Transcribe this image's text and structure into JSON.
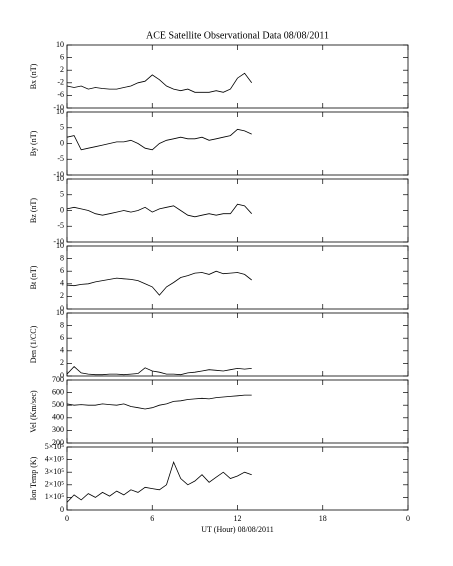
{
  "chart_data": [
    {
      "type": "line",
      "title": "ACE Satellite Observational Data   08/08/2011",
      "ylabel": "Bx (nT)",
      "xlim": [
        0,
        24
      ],
      "xticks": [
        0,
        6,
        12,
        18,
        {
          "value": 24,
          "label": "0"
        }
      ],
      "ylim": [
        -10,
        10
      ],
      "yticks": [
        -10,
        -6,
        -2,
        2,
        6,
        10
      ],
      "x": [
        0,
        0.5,
        1,
        1.5,
        2,
        2.5,
        3,
        3.5,
        4,
        4.5,
        5,
        5.5,
        6,
        6.5,
        7,
        7.5,
        8,
        8.5,
        9,
        9.5,
        10,
        10.5,
        11,
        11.5,
        12,
        12.5,
        13
      ],
      "series": [
        {
          "color": "#000000",
          "values": [
            -3,
            -3.5,
            -3,
            -4,
            -3.5,
            -3.8,
            -4,
            -4,
            -3.5,
            -3,
            -2,
            -1.5,
            0.5,
            -1,
            -3,
            -4,
            -4.5,
            -4,
            -5,
            -5,
            -5,
            -4.5,
            -5,
            -4,
            -0.5,
            1,
            -2
          ]
        }
      ]
    },
    {
      "type": "line",
      "ylabel": "By (nT)",
      "xlim": [
        0,
        24
      ],
      "xticks": [
        0,
        6,
        12,
        18,
        {
          "value": 24,
          "label": "0"
        }
      ],
      "ylim": [
        -10,
        10
      ],
      "yticks": [
        -10,
        -5,
        0,
        5,
        10
      ],
      "x": [
        0,
        0.5,
        1,
        1.5,
        2,
        2.5,
        3,
        3.5,
        4,
        4.5,
        5,
        5.5,
        6,
        6.5,
        7,
        7.5,
        8,
        8.5,
        9,
        9.5,
        10,
        10.5,
        11,
        11.5,
        12,
        12.5,
        13
      ],
      "series": [
        {
          "color": "#000000",
          "values": [
            2,
            2.5,
            -2,
            -1.5,
            -1,
            -0.5,
            0,
            0.5,
            0.5,
            1,
            0,
            -1.5,
            -2,
            0,
            1,
            1.5,
            2,
            1.5,
            1.5,
            2,
            1,
            1.5,
            2,
            2.5,
            4.5,
            4,
            3
          ]
        }
      ]
    },
    {
      "type": "line",
      "ylabel": "Bz (nT)",
      "xlim": [
        0,
        24
      ],
      "xticks": [
        0,
        6,
        12,
        18,
        {
          "value": 24,
          "label": "0"
        }
      ],
      "ylim": [
        -10,
        10
      ],
      "yticks": [
        -10,
        -5,
        0,
        5,
        10
      ],
      "x": [
        0,
        0.5,
        1,
        1.5,
        2,
        2.5,
        3,
        3.5,
        4,
        4.5,
        5,
        5.5,
        6,
        6.5,
        7,
        7.5,
        8,
        8.5,
        9,
        9.5,
        10,
        10.5,
        11,
        11.5,
        12,
        12.5,
        13
      ],
      "series": [
        {
          "color": "#000000",
          "values": [
            0.5,
            1,
            0.5,
            0,
            -1,
            -1.5,
            -1,
            -0.5,
            0,
            -0.5,
            0,
            1,
            -0.5,
            0.5,
            1,
            1.5,
            0,
            -1.5,
            -2,
            -1.5,
            -1,
            -1.5,
            -1,
            -1,
            2,
            1.5,
            -1
          ]
        }
      ]
    },
    {
      "type": "line",
      "ylabel": "Bt (nT)",
      "xlim": [
        0,
        24
      ],
      "xticks": [
        0,
        6,
        12,
        18,
        {
          "value": 24,
          "label": "0"
        }
      ],
      "ylim": [
        0,
        10
      ],
      "yticks": [
        0,
        2,
        4,
        6,
        8,
        10
      ],
      "x": [
        0,
        0.5,
        1,
        1.5,
        2,
        2.5,
        3,
        3.5,
        4,
        4.5,
        5,
        5.5,
        6,
        6.5,
        7,
        7.5,
        8,
        8.5,
        9,
        9.5,
        10,
        10.5,
        11,
        11.5,
        12,
        12.5,
        13
      ],
      "series": [
        {
          "color": "#000000",
          "values": [
            3.8,
            3.7,
            3.9,
            4,
            4.3,
            4.5,
            4.7,
            4.9,
            4.8,
            4.7,
            4.5,
            4,
            3.5,
            2.2,
            3.5,
            4.2,
            5,
            5.3,
            5.7,
            5.8,
            5.5,
            6,
            5.6,
            5.7,
            5.8,
            5.5,
            4.6
          ]
        }
      ]
    },
    {
      "type": "line",
      "ylabel": "Den (1/CC)",
      "xlim": [
        0,
        24
      ],
      "xticks": [
        0,
        6,
        12,
        18,
        {
          "value": 24,
          "label": "0"
        }
      ],
      "ylim": [
        0,
        10
      ],
      "yticks": [
        0,
        2,
        4,
        6,
        8,
        10
      ],
      "x": [
        0,
        0.5,
        1,
        1.5,
        2,
        2.5,
        3,
        3.5,
        4,
        4.5,
        5,
        5.5,
        6,
        6.5,
        7,
        7.5,
        8,
        8.5,
        9,
        9.5,
        10,
        10.5,
        11,
        11.5,
        12,
        12.5,
        13
      ],
      "series": [
        {
          "color": "#000000",
          "values": [
            0.3,
            1.5,
            0.5,
            0.3,
            0.2,
            0.2,
            0.3,
            0.3,
            0.2,
            0.3,
            0.4,
            1.3,
            0.8,
            0.6,
            0.3,
            0.3,
            0.2,
            0.5,
            0.6,
            0.8,
            1,
            0.9,
            0.8,
            1,
            1.2,
            1.1,
            1.2
          ]
        }
      ]
    },
    {
      "type": "line",
      "ylabel": "Vel (Km/sec)",
      "xlim": [
        0,
        24
      ],
      "xticks": [
        0,
        6,
        12,
        18,
        {
          "value": 24,
          "label": "0"
        }
      ],
      "ylim": [
        200,
        700
      ],
      "yticks": [
        200,
        300,
        400,
        500,
        600,
        700
      ],
      "x": [
        0,
        0.5,
        1,
        1.5,
        2,
        2.5,
        3,
        3.5,
        4,
        4.5,
        5,
        5.5,
        6,
        6.5,
        7,
        7.5,
        8,
        8.5,
        9,
        9.5,
        10,
        10.5,
        11,
        11.5,
        12,
        12.5,
        13
      ],
      "series": [
        {
          "color": "#000000",
          "values": [
            510,
            500,
            505,
            500,
            500,
            510,
            505,
            500,
            510,
            490,
            480,
            470,
            480,
            500,
            510,
            530,
            535,
            545,
            550,
            555,
            550,
            560,
            565,
            570,
            575,
            580,
            580
          ]
        }
      ]
    },
    {
      "type": "line",
      "ylabel": "Ion Temp (K)",
      "xlabel": "UT (Hour)  08/08/2011",
      "xlim": [
        0,
        24
      ],
      "xticks": [
        0,
        6,
        12,
        18,
        {
          "value": 24,
          "label": "0"
        }
      ],
      "ylim": [
        0,
        500000
      ],
      "yticks": [
        0,
        {
          "value": 100000,
          "label": "1×10⁵"
        },
        {
          "value": 200000,
          "label": "2×10⁵"
        },
        {
          "value": 300000,
          "label": "3×10⁵"
        },
        {
          "value": 400000,
          "label": "4×10⁵"
        },
        {
          "value": 500000,
          "label": "5×10⁵"
        }
      ],
      "x": [
        0,
        0.5,
        1,
        1.5,
        2,
        2.5,
        3,
        3.5,
        4,
        4.5,
        5,
        5.5,
        6,
        6.5,
        7,
        7.5,
        8,
        8.5,
        9,
        9.5,
        10,
        10.5,
        11,
        11.5,
        12,
        12.5,
        13
      ],
      "series": [
        {
          "color": "#000000",
          "values": [
            60000,
            120000,
            80000,
            130000,
            100000,
            140000,
            110000,
            150000,
            120000,
            160000,
            140000,
            180000,
            170000,
            160000,
            200000,
            380000,
            250000,
            200000,
            230000,
            280000,
            220000,
            260000,
            300000,
            250000,
            270000,
            300000,
            280000
          ]
        }
      ]
    }
  ]
}
